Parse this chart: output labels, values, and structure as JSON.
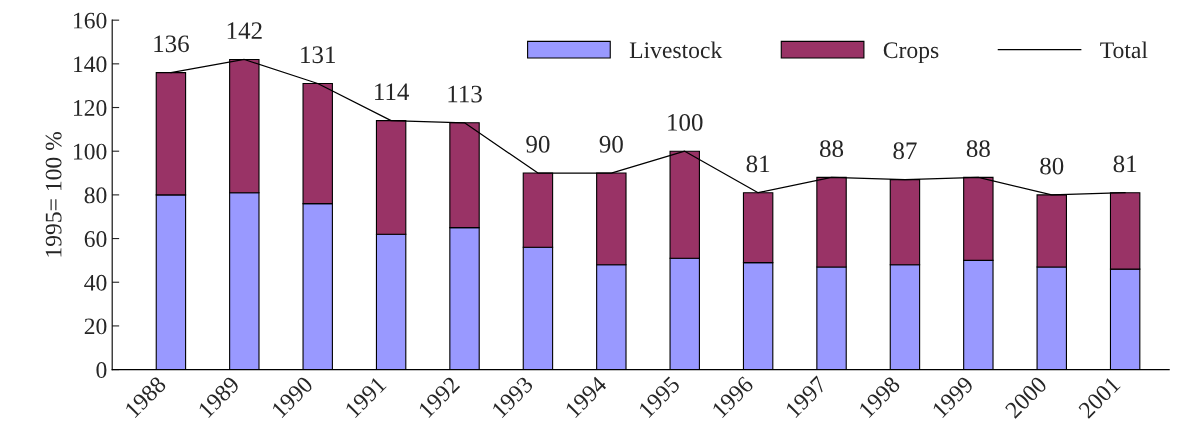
{
  "chart_data": {
    "type": "bar",
    "stacked": true,
    "ylabel": "1995= 100 %",
    "categories": [
      "1988",
      "1989",
      "1990",
      "1991",
      "1992",
      "1993",
      "1994",
      "1995",
      "1996",
      "1997",
      "1998",
      "1999",
      "2000",
      "2001"
    ],
    "series": [
      {
        "name": "Livestock",
        "color": "#9999ff",
        "values": [
          80,
          81,
          76,
          62,
          65,
          56,
          48,
          51,
          49,
          47,
          48,
          50,
          47,
          46
        ]
      },
      {
        "name": "Crops",
        "color": "#993366",
        "values": [
          56,
          61,
          55,
          52,
          48,
          34,
          42,
          49,
          32,
          41,
          39,
          38,
          33,
          35
        ]
      },
      {
        "name": "Total",
        "type": "line",
        "color": "#000000",
        "values": [
          136,
          142,
          131,
          114,
          113,
          90,
          90,
          100,
          81,
          88,
          87,
          88,
          80,
          81
        ],
        "value_labels": [
          "136",
          "142",
          "131",
          "114",
          "113",
          "90",
          "90",
          "100",
          "81",
          "88",
          "87",
          "88",
          "80",
          "81"
        ]
      }
    ],
    "ylim": [
      0,
      160
    ],
    "yticks": [
      0,
      20,
      40,
      60,
      80,
      100,
      120,
      140,
      160
    ],
    "grid": false,
    "legend": "top right"
  }
}
